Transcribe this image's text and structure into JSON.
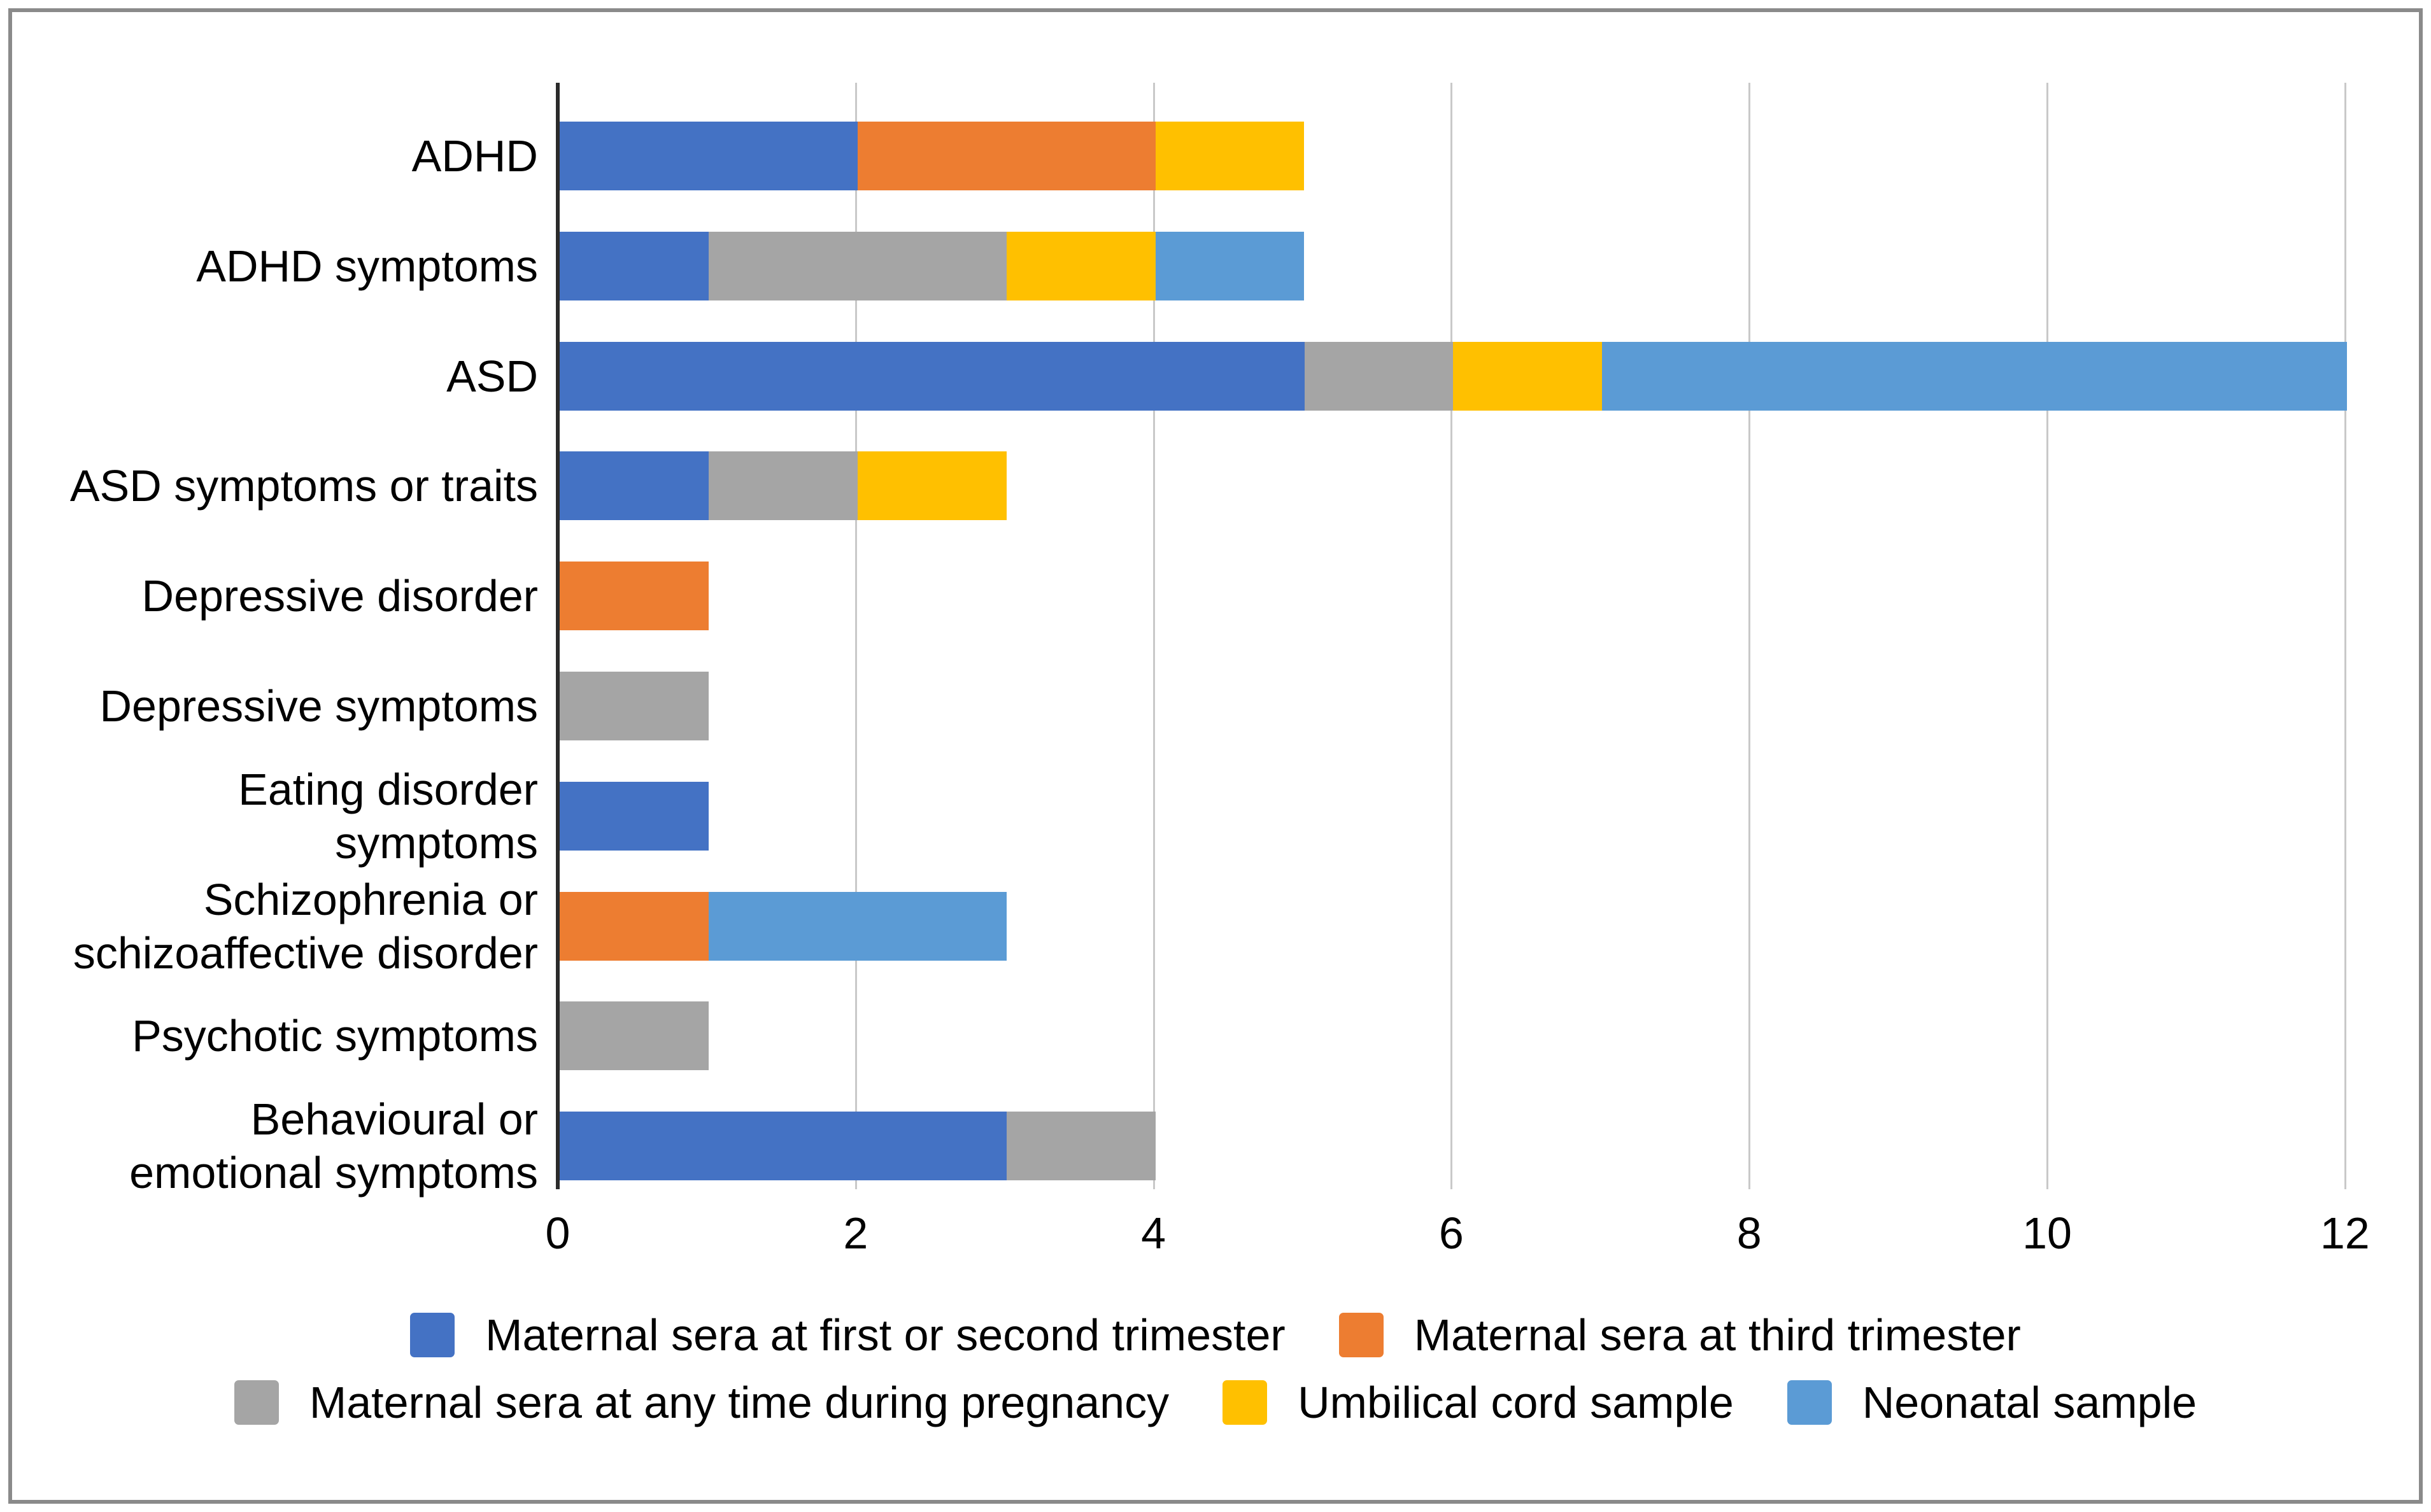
{
  "figure": {
    "background_color": "#ffffff",
    "border_color": "#8a8a8a"
  },
  "chart_data": {
    "type": "bar",
    "orientation": "horizontal",
    "stacked": true,
    "title": "",
    "xlabel": "",
    "ylabel": "",
    "xlim": [
      0,
      12
    ],
    "x_ticks": [
      0,
      2,
      4,
      6,
      8,
      10,
      12
    ],
    "grid": "vertical gridlines at even ticks",
    "legend_position": "bottom",
    "axis_color": "#2b2b2b",
    "gridline_color": "#c9c9c9",
    "categories": [
      {
        "label_lines": [
          "ADHD"
        ]
      },
      {
        "label_lines": [
          "ADHD symptoms"
        ]
      },
      {
        "label_lines": [
          "ASD"
        ]
      },
      {
        "label_lines": [
          "ASD symptoms or traits"
        ]
      },
      {
        "label_lines": [
          "Depressive disorder"
        ]
      },
      {
        "label_lines": [
          "Depressive symptoms"
        ]
      },
      {
        "label_lines": [
          "Eating disorder",
          "symptoms"
        ]
      },
      {
        "label_lines": [
          "Schizophrenia or",
          "schizoaffective disorder"
        ]
      },
      {
        "label_lines": [
          "Psychotic symptoms"
        ]
      },
      {
        "label_lines": [
          "Behavioural or",
          "emotional symptoms"
        ]
      }
    ],
    "series": [
      {
        "name": "Maternal sera at first or second trimester",
        "color": "#4472C4",
        "values": [
          2,
          1,
          5,
          1,
          0,
          0,
          1,
          0,
          0,
          3
        ]
      },
      {
        "name": "Maternal sera at third trimester",
        "color": "#ED7D31",
        "values": [
          2,
          0,
          0,
          0,
          1,
          0,
          0,
          1,
          0,
          0
        ]
      },
      {
        "name": "Maternal sera at any time during pregnancy",
        "color": "#A5A5A5",
        "values": [
          0,
          2,
          1,
          1,
          0,
          1,
          0,
          0,
          1,
          1
        ]
      },
      {
        "name": "Umbilical cord sample",
        "color": "#FFC000",
        "values": [
          1,
          1,
          1,
          1,
          0,
          0,
          0,
          0,
          0,
          0
        ]
      },
      {
        "name": "Neonatal sample",
        "color": "#5B9BD5",
        "values": [
          0,
          1,
          5,
          0,
          0,
          0,
          0,
          2,
          0,
          0
        ]
      }
    ],
    "stack_totals": [
      5,
      5,
      12,
      3,
      1,
      1,
      1,
      3,
      1,
      4
    ],
    "legend_rows": [
      [
        0,
        1
      ],
      [
        2,
        3,
        4
      ]
    ]
  }
}
